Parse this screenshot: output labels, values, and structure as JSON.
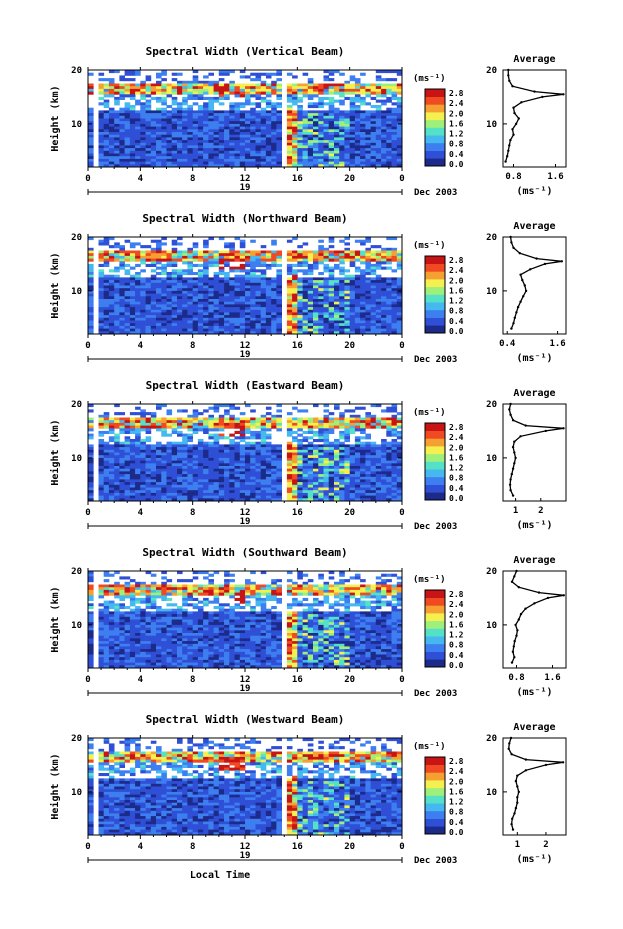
{
  "figure": {
    "xlabel": "Local Time",
    "date_label": "Dec 2003",
    "day_label": "19",
    "colorbar_unit": "(ms⁻¹)",
    "avg_title": "Average",
    "avg_xlabel": "(ms⁻¹)",
    "ylabel": "Height (km)",
    "colorbar_ticks": [
      "2.8",
      "2.4",
      "2.0",
      "1.6",
      "1.2",
      "0.8",
      "0.4",
      "0.0"
    ],
    "colors": {
      "cmap": [
        "#1c2a8a",
        "#2f4fd6",
        "#3d7ff0",
        "#45b8f0",
        "#55e0c8",
        "#9ef07a",
        "#f4f050",
        "#f7a032",
        "#f04a22",
        "#c81414"
      ],
      "gap": "#ffffff"
    }
  },
  "chart_data": [
    {
      "type": "heatmap",
      "title": "Spectral Width (Vertical Beam)",
      "x_ticks": [
        "0",
        "4",
        "8",
        "12",
        "16",
        "20",
        "0"
      ],
      "y_ticks": [
        "20",
        "10"
      ],
      "xlim": [
        0,
        24
      ],
      "ylim": [
        2,
        20
      ],
      "color_range": [
        0.0,
        2.8
      ],
      "data_gap_hours": [
        0.6,
        14.8
      ],
      "average_profile": {
        "x_ticks": [
          "0.8",
          "1.6"
        ],
        "y_ticks": [
          "20",
          "10"
        ],
        "xlim": [
          0.6,
          1.8
        ],
        "height": [
          3,
          4,
          5,
          6,
          7,
          8,
          9,
          10,
          11,
          12,
          13,
          14,
          15,
          15.5,
          16,
          17,
          18,
          19,
          20
        ],
        "value": [
          0.65,
          0.68,
          0.7,
          0.72,
          0.74,
          0.8,
          0.78,
          0.85,
          0.9,
          0.82,
          0.8,
          0.95,
          1.35,
          1.75,
          1.2,
          0.78,
          0.72,
          0.7,
          0.7
        ]
      }
    },
    {
      "type": "heatmap",
      "title": "Spectral Width (Northward Beam)",
      "x_ticks": [
        "0",
        "4",
        "8",
        "12",
        "16",
        "20",
        "0"
      ],
      "y_ticks": [
        "20",
        "10"
      ],
      "xlim": [
        0,
        24
      ],
      "ylim": [
        2,
        20
      ],
      "color_range": [
        0.0,
        2.8
      ],
      "data_gap_hours": [
        0.6,
        14.8
      ],
      "average_profile": {
        "x_ticks": [
          "0.4",
          "1.6"
        ],
        "y_ticks": [
          "20",
          "10"
        ],
        "xlim": [
          0.3,
          1.8
        ],
        "height": [
          3,
          4,
          5,
          6,
          7,
          8,
          9,
          10,
          11,
          12,
          13,
          14,
          15,
          15.5,
          16,
          17,
          18,
          19,
          20
        ],
        "value": [
          0.5,
          0.55,
          0.58,
          0.62,
          0.66,
          0.72,
          0.78,
          0.85,
          0.82,
          0.76,
          0.72,
          0.95,
          1.3,
          1.7,
          1.1,
          0.7,
          0.55,
          0.5,
          0.48
        ]
      }
    },
    {
      "type": "heatmap",
      "title": "Spectral Width (Eastward Beam)",
      "x_ticks": [
        "0",
        "4",
        "8",
        "12",
        "16",
        "20",
        "0"
      ],
      "y_ticks": [
        "20",
        "10"
      ],
      "xlim": [
        0,
        24
      ],
      "ylim": [
        2,
        20
      ],
      "color_range": [
        0.0,
        2.8
      ],
      "data_gap_hours": [
        0.6,
        14.8
      ],
      "average_profile": {
        "x_ticks": [
          "1",
          "2"
        ],
        "y_ticks": [
          "20",
          "10"
        ],
        "xlim": [
          0.5,
          3.0
        ],
        "height": [
          3,
          4,
          5,
          6,
          7,
          8,
          9,
          10,
          11,
          12,
          13,
          14,
          15,
          15.5,
          16,
          17,
          18,
          19,
          20
        ],
        "value": [
          0.9,
          0.8,
          0.78,
          0.8,
          0.85,
          0.9,
          0.95,
          1.0,
          0.95,
          0.9,
          0.95,
          1.2,
          2.2,
          2.9,
          1.4,
          0.9,
          0.8,
          0.75,
          0.8
        ]
      }
    },
    {
      "type": "heatmap",
      "title": "Spectral Width (Southward Beam)",
      "x_ticks": [
        "0",
        "4",
        "8",
        "12",
        "16",
        "20",
        "0"
      ],
      "y_ticks": [
        "20",
        "10"
      ],
      "xlim": [
        0,
        24
      ],
      "ylim": [
        2,
        20
      ],
      "color_range": [
        0.0,
        2.8
      ],
      "data_gap_hours": [
        0.6,
        14.8
      ],
      "average_profile": {
        "x_ticks": [
          "0.8",
          "1.6"
        ],
        "y_ticks": [
          "20",
          "10"
        ],
        "xlim": [
          0.5,
          1.9
        ],
        "height": [
          3,
          4,
          5,
          6,
          7,
          8,
          9,
          10,
          11,
          12,
          13,
          14,
          15,
          15.5,
          16,
          17,
          18,
          19,
          20
        ],
        "value": [
          0.7,
          0.75,
          0.72,
          0.74,
          0.76,
          0.8,
          0.82,
          0.78,
          0.85,
          0.9,
          1.0,
          1.2,
          1.5,
          1.85,
          1.3,
          0.85,
          0.7,
          0.75,
          0.8
        ]
      }
    },
    {
      "type": "heatmap",
      "title": "Spectral Width (Westward Beam)",
      "x_ticks": [
        "0",
        "4",
        "8",
        "12",
        "16",
        "20",
        "0"
      ],
      "y_ticks": [
        "20",
        "10"
      ],
      "xlim": [
        0,
        24
      ],
      "ylim": [
        2,
        20
      ],
      "color_range": [
        0.0,
        2.8
      ],
      "data_gap_hours": [
        0.6,
        14.8
      ],
      "average_profile": {
        "x_ticks": [
          "1",
          "2"
        ],
        "y_ticks": [
          "20",
          "10"
        ],
        "xlim": [
          0.5,
          2.7
        ],
        "height": [
          3,
          4,
          5,
          6,
          7,
          8,
          9,
          10,
          11,
          12,
          13,
          14,
          15,
          15.5,
          16,
          17,
          18,
          19,
          20
        ],
        "value": [
          0.85,
          0.8,
          0.82,
          0.9,
          0.95,
          1.0,
          1.0,
          1.05,
          1.0,
          0.95,
          1.0,
          1.3,
          2.0,
          2.6,
          1.3,
          0.8,
          0.7,
          0.72,
          0.78
        ]
      }
    }
  ]
}
